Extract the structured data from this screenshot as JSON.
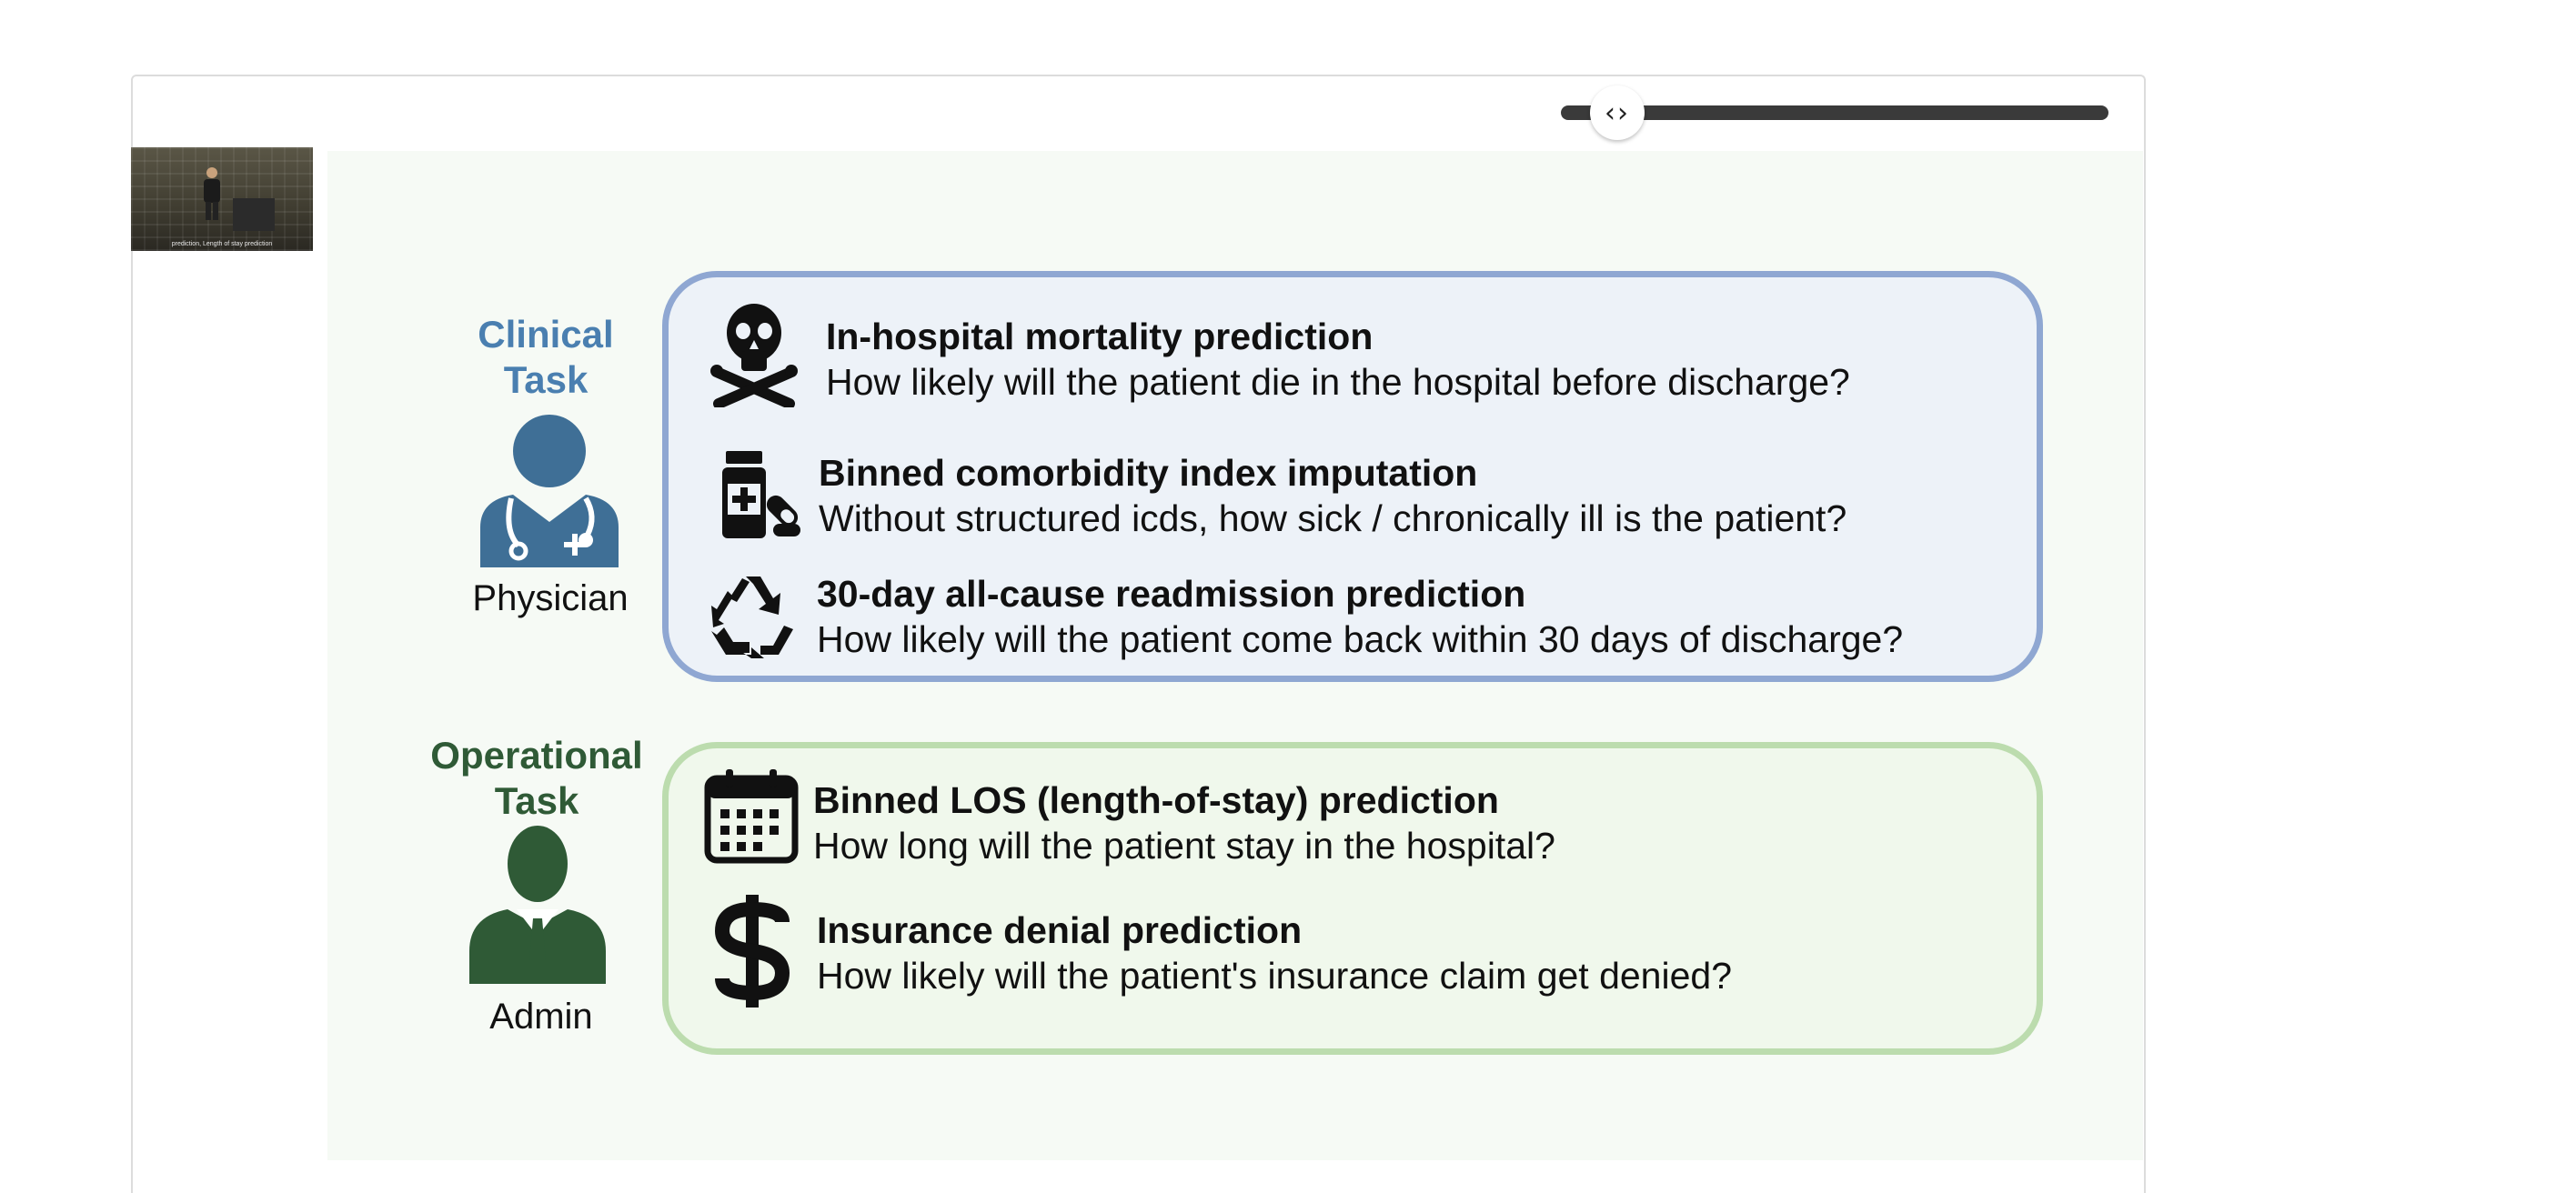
{
  "video": {
    "thumbnail_caption": "prediction, Length of stay prediction"
  },
  "roles": {
    "clinical": {
      "title_line1": "Clinical",
      "title_line2": "Task",
      "label": "Physician",
      "color": "#4a7fb0"
    },
    "operational": {
      "title_line1": "Operational",
      "title_line2": "Task",
      "label": "Admin",
      "color": "#2f5a36"
    }
  },
  "tasks": [
    {
      "icon": "skull-crossbones-icon",
      "title": "In-hospital mortality prediction",
      "question": "How likely will the patient die in the hospital before discharge?"
    },
    {
      "icon": "medicine-bottle-icon",
      "title": "Binned comorbidity index imputation",
      "question": "Without structured icds, how sick / chronically ill is the patient?"
    },
    {
      "icon": "recycle-icon",
      "title": "30-day all-cause readmission prediction",
      "question": "How likely will the patient come back within 30 days of discharge?"
    },
    {
      "icon": "calendar-icon",
      "title": "Binned LOS (length-of-stay) prediction",
      "question": "How long will the patient stay in the hospital?"
    },
    {
      "icon": "dollar-icon",
      "title": "Insurance denial prediction",
      "question": "How likely will the patient's insurance claim get denied?"
    }
  ],
  "colors": {
    "clinical_border": "#8fa7d2",
    "clinical_fill": "#edf2f8",
    "operational_border": "#bcdcae",
    "operational_fill": "#f0f8ec",
    "slider_track": "#3a3a3a"
  }
}
